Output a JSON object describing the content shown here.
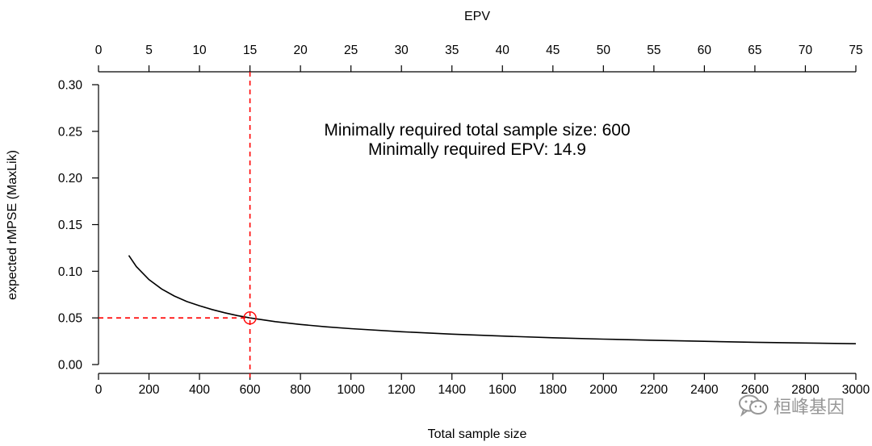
{
  "chart_data": {
    "type": "line",
    "title": "",
    "xlabel": "Total sample size",
    "ylabel": "expected rMPSE (MaxLik)",
    "x2label": "EPV",
    "xlim": [
      0,
      3000
    ],
    "ylim": [
      0,
      0.3
    ],
    "x2lim": [
      0,
      75
    ],
    "xticks": [
      0,
      200,
      400,
      600,
      800,
      1000,
      1200,
      1400,
      1600,
      1800,
      2000,
      2200,
      2400,
      2600,
      2800,
      3000
    ],
    "x2ticks": [
      0,
      5,
      10,
      15,
      20,
      25,
      30,
      35,
      40,
      45,
      50,
      55,
      60,
      65,
      70,
      75
    ],
    "yticks": [
      "0.00",
      "0.05",
      "0.10",
      "0.15",
      "0.20",
      "0.25",
      "0.30"
    ],
    "grid": false,
    "series": [
      {
        "x": [
          120,
          150,
          200,
          250,
          300,
          350,
          400,
          450,
          500,
          550,
          600,
          700,
          800,
          900,
          1000,
          1200,
          1400,
          1600,
          1800,
          2000,
          2200,
          2400,
          2600,
          2800,
          3000
        ],
        "values": [
          0.117,
          0.105,
          0.091,
          0.081,
          0.0735,
          0.0675,
          0.063,
          0.059,
          0.0555,
          0.0525,
          0.05,
          0.046,
          0.043,
          0.0405,
          0.0385,
          0.0352,
          0.0326,
          0.0305,
          0.0287,
          0.0272,
          0.026,
          0.0249,
          0.0239,
          0.0231,
          0.0223
        ]
      }
    ],
    "reference": {
      "x": 600,
      "y": 0.05,
      "color": "#ff0000"
    },
    "annotations": [
      "Minimally required total sample size: 600",
      "Minimally required EPV: 14.9"
    ],
    "colors": {
      "curve": "#000000",
      "reference": "#ff0000"
    }
  },
  "watermark": {
    "text": "桓峰基因",
    "icon": "wechat-icon"
  }
}
